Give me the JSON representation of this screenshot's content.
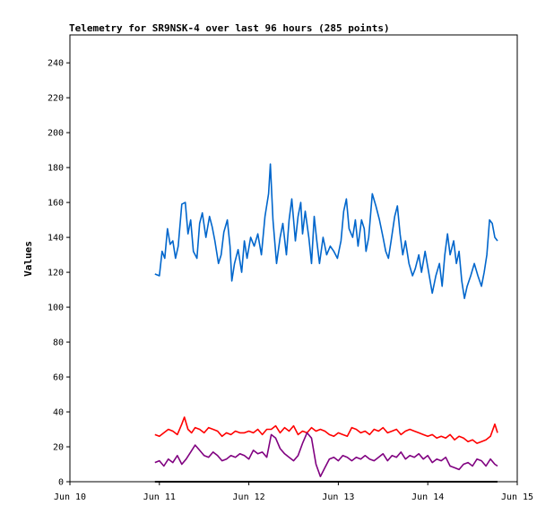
{
  "chart_data": {
    "type": "line",
    "title": "Telemetry for SR9NSK-4 over last 96 hours (285 points)",
    "xlabel": "",
    "ylabel": "Values",
    "x_tick_labels": [
      "Jun 10",
      "Jun 11",
      "Jun 12",
      "Jun 13",
      "Jun 14",
      "Jun 15"
    ],
    "xlim": [
      0,
      5
    ],
    "x_unit": "days from Jun 10",
    "y_ticks": [
      0,
      20,
      40,
      60,
      80,
      100,
      120,
      140,
      160,
      180,
      200,
      220,
      240
    ],
    "ylim": [
      0,
      256
    ],
    "grid": false,
    "legend": "none",
    "series": [
      {
        "color": "#0066cc",
        "points": [
          [
            0.95,
            119
          ],
          [
            1.0,
            118
          ],
          [
            1.03,
            132
          ],
          [
            1.06,
            128
          ],
          [
            1.09,
            145
          ],
          [
            1.12,
            136
          ],
          [
            1.15,
            138
          ],
          [
            1.18,
            128
          ],
          [
            1.21,
            135
          ],
          [
            1.25,
            159
          ],
          [
            1.29,
            160
          ],
          [
            1.32,
            142
          ],
          [
            1.35,
            150
          ],
          [
            1.38,
            132
          ],
          [
            1.42,
            128
          ],
          [
            1.45,
            148
          ],
          [
            1.48,
            154
          ],
          [
            1.52,
            140
          ],
          [
            1.56,
            152
          ],
          [
            1.59,
            146
          ],
          [
            1.62,
            138
          ],
          [
            1.66,
            125
          ],
          [
            1.69,
            130
          ],
          [
            1.72,
            143
          ],
          [
            1.76,
            150
          ],
          [
            1.79,
            135
          ],
          [
            1.81,
            115
          ],
          [
            1.84,
            125
          ],
          [
            1.88,
            133
          ],
          [
            1.92,
            120
          ],
          [
            1.95,
            138
          ],
          [
            1.98,
            128
          ],
          [
            2.02,
            140
          ],
          [
            2.06,
            135
          ],
          [
            2.1,
            142
          ],
          [
            2.14,
            130
          ],
          [
            2.18,
            152
          ],
          [
            2.22,
            165
          ],
          [
            2.24,
            182
          ],
          [
            2.27,
            150
          ],
          [
            2.31,
            125
          ],
          [
            2.35,
            140
          ],
          [
            2.38,
            148
          ],
          [
            2.42,
            130
          ],
          [
            2.45,
            150
          ],
          [
            2.48,
            162
          ],
          [
            2.52,
            138
          ],
          [
            2.55,
            152
          ],
          [
            2.58,
            160
          ],
          [
            2.6,
            142
          ],
          [
            2.63,
            155
          ],
          [
            2.67,
            140
          ],
          [
            2.7,
            125
          ],
          [
            2.73,
            152
          ],
          [
            2.76,
            138
          ],
          [
            2.79,
            125
          ],
          [
            2.83,
            140
          ],
          [
            2.87,
            130
          ],
          [
            2.91,
            135
          ],
          [
            2.95,
            132
          ],
          [
            2.99,
            128
          ],
          [
            3.03,
            138
          ],
          [
            3.06,
            155
          ],
          [
            3.09,
            162
          ],
          [
            3.12,
            145
          ],
          [
            3.16,
            140
          ],
          [
            3.19,
            150
          ],
          [
            3.22,
            135
          ],
          [
            3.26,
            150
          ],
          [
            3.29,
            145
          ],
          [
            3.31,
            132
          ],
          [
            3.34,
            140
          ],
          [
            3.38,
            165
          ],
          [
            3.42,
            158
          ],
          [
            3.46,
            150
          ],
          [
            3.5,
            140
          ],
          [
            3.53,
            132
          ],
          [
            3.56,
            128
          ],
          [
            3.59,
            138
          ],
          [
            3.63,
            152
          ],
          [
            3.66,
            158
          ],
          [
            3.69,
            142
          ],
          [
            3.72,
            130
          ],
          [
            3.75,
            138
          ],
          [
            3.79,
            125
          ],
          [
            3.83,
            118
          ],
          [
            3.86,
            122
          ],
          [
            3.9,
            130
          ],
          [
            3.93,
            120
          ],
          [
            3.97,
            132
          ],
          [
            4.01,
            120
          ],
          [
            4.05,
            108
          ],
          [
            4.09,
            118
          ],
          [
            4.13,
            125
          ],
          [
            4.16,
            112
          ],
          [
            4.19,
            130
          ],
          [
            4.22,
            142
          ],
          [
            4.25,
            130
          ],
          [
            4.29,
            138
          ],
          [
            4.32,
            125
          ],
          [
            4.35,
            132
          ],
          [
            4.38,
            115
          ],
          [
            4.41,
            105
          ],
          [
            4.44,
            112
          ],
          [
            4.48,
            118
          ],
          [
            4.52,
            125
          ],
          [
            4.56,
            118
          ],
          [
            4.6,
            112
          ],
          [
            4.63,
            120
          ],
          [
            4.66,
            130
          ],
          [
            4.69,
            150
          ],
          [
            4.72,
            148
          ],
          [
            4.75,
            140
          ],
          [
            4.78,
            138
          ]
        ]
      },
      {
        "color": "#ff0000",
        "points": [
          [
            0.95,
            27
          ],
          [
            1.0,
            26
          ],
          [
            1.05,
            28
          ],
          [
            1.1,
            30
          ],
          [
            1.15,
            29
          ],
          [
            1.2,
            27
          ],
          [
            1.25,
            33
          ],
          [
            1.28,
            37
          ],
          [
            1.32,
            30
          ],
          [
            1.36,
            28
          ],
          [
            1.4,
            31
          ],
          [
            1.45,
            30
          ],
          [
            1.5,
            28
          ],
          [
            1.55,
            31
          ],
          [
            1.6,
            30
          ],
          [
            1.65,
            29
          ],
          [
            1.7,
            26
          ],
          [
            1.75,
            28
          ],
          [
            1.8,
            27
          ],
          [
            1.85,
            29
          ],
          [
            1.9,
            28
          ],
          [
            1.95,
            28
          ],
          [
            2.0,
            29
          ],
          [
            2.05,
            28
          ],
          [
            2.1,
            30
          ],
          [
            2.15,
            27
          ],
          [
            2.2,
            30
          ],
          [
            2.25,
            30
          ],
          [
            2.3,
            32
          ],
          [
            2.35,
            28
          ],
          [
            2.4,
            31
          ],
          [
            2.45,
            29
          ],
          [
            2.5,
            32
          ],
          [
            2.55,
            27
          ],
          [
            2.6,
            29
          ],
          [
            2.65,
            28
          ],
          [
            2.7,
            31
          ],
          [
            2.75,
            29
          ],
          [
            2.8,
            30
          ],
          [
            2.85,
            29
          ],
          [
            2.9,
            27
          ],
          [
            2.95,
            26
          ],
          [
            3.0,
            28
          ],
          [
            3.05,
            27
          ],
          [
            3.1,
            26
          ],
          [
            3.15,
            31
          ],
          [
            3.2,
            30
          ],
          [
            3.25,
            28
          ],
          [
            3.3,
            29
          ],
          [
            3.35,
            27
          ],
          [
            3.4,
            30
          ],
          [
            3.45,
            29
          ],
          [
            3.5,
            31
          ],
          [
            3.55,
            28
          ],
          [
            3.6,
            29
          ],
          [
            3.65,
            30
          ],
          [
            3.7,
            27
          ],
          [
            3.75,
            29
          ],
          [
            3.8,
            30
          ],
          [
            3.85,
            29
          ],
          [
            3.9,
            28
          ],
          [
            3.95,
            27
          ],
          [
            4.0,
            26
          ],
          [
            4.05,
            27
          ],
          [
            4.1,
            25
          ],
          [
            4.15,
            26
          ],
          [
            4.2,
            25
          ],
          [
            4.25,
            27
          ],
          [
            4.3,
            24
          ],
          [
            4.35,
            26
          ],
          [
            4.4,
            25
          ],
          [
            4.45,
            23
          ],
          [
            4.5,
            24
          ],
          [
            4.55,
            22
          ],
          [
            4.6,
            23
          ],
          [
            4.65,
            24
          ],
          [
            4.7,
            26
          ],
          [
            4.75,
            33
          ],
          [
            4.78,
            28
          ]
        ]
      },
      {
        "color": "#800080",
        "points": [
          [
            0.95,
            11
          ],
          [
            1.0,
            12
          ],
          [
            1.05,
            9
          ],
          [
            1.1,
            13
          ],
          [
            1.15,
            11
          ],
          [
            1.2,
            15
          ],
          [
            1.25,
            10
          ],
          [
            1.3,
            13
          ],
          [
            1.35,
            17
          ],
          [
            1.4,
            21
          ],
          [
            1.45,
            18
          ],
          [
            1.5,
            15
          ],
          [
            1.55,
            14
          ],
          [
            1.6,
            17
          ],
          [
            1.65,
            15
          ],
          [
            1.7,
            12
          ],
          [
            1.75,
            13
          ],
          [
            1.8,
            15
          ],
          [
            1.85,
            14
          ],
          [
            1.9,
            16
          ],
          [
            1.95,
            15
          ],
          [
            2.0,
            13
          ],
          [
            2.05,
            18
          ],
          [
            2.1,
            16
          ],
          [
            2.15,
            17
          ],
          [
            2.2,
            14
          ],
          [
            2.25,
            27
          ],
          [
            2.3,
            25
          ],
          [
            2.35,
            19
          ],
          [
            2.4,
            16
          ],
          [
            2.45,
            14
          ],
          [
            2.5,
            12
          ],
          [
            2.55,
            15
          ],
          [
            2.6,
            22
          ],
          [
            2.65,
            28
          ],
          [
            2.7,
            25
          ],
          [
            2.75,
            10
          ],
          [
            2.8,
            3
          ],
          [
            2.85,
            8
          ],
          [
            2.9,
            13
          ],
          [
            2.95,
            14
          ],
          [
            3.0,
            12
          ],
          [
            3.05,
            15
          ],
          [
            3.1,
            14
          ],
          [
            3.15,
            12
          ],
          [
            3.2,
            14
          ],
          [
            3.25,
            13
          ],
          [
            3.3,
            15
          ],
          [
            3.35,
            13
          ],
          [
            3.4,
            12
          ],
          [
            3.45,
            14
          ],
          [
            3.5,
            16
          ],
          [
            3.55,
            12
          ],
          [
            3.6,
            15
          ],
          [
            3.65,
            14
          ],
          [
            3.7,
            17
          ],
          [
            3.75,
            13
          ],
          [
            3.8,
            15
          ],
          [
            3.85,
            14
          ],
          [
            3.9,
            16
          ],
          [
            3.95,
            13
          ],
          [
            4.0,
            15
          ],
          [
            4.05,
            11
          ],
          [
            4.1,
            13
          ],
          [
            4.15,
            12
          ],
          [
            4.2,
            14
          ],
          [
            4.25,
            9
          ],
          [
            4.3,
            8
          ],
          [
            4.35,
            7
          ],
          [
            4.4,
            10
          ],
          [
            4.45,
            11
          ],
          [
            4.5,
            9
          ],
          [
            4.55,
            13
          ],
          [
            4.6,
            12
          ],
          [
            4.65,
            9
          ],
          [
            4.7,
            13
          ],
          [
            4.75,
            10
          ],
          [
            4.78,
            9
          ]
        ]
      },
      {
        "color": "#000000",
        "points": [
          [
            0.95,
            0
          ],
          [
            4.78,
            0
          ]
        ]
      }
    ]
  }
}
